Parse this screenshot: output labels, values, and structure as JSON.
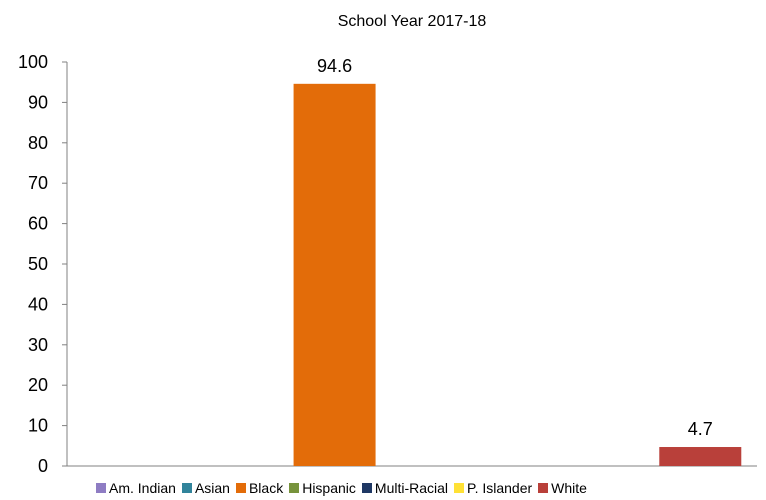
{
  "chart_data": {
    "type": "bar",
    "title": "School Year 2017-18",
    "xlabel": "",
    "ylabel": "",
    "ylim": [
      0,
      100
    ],
    "yticks": [
      0,
      10,
      20,
      30,
      40,
      50,
      60,
      70,
      80,
      90,
      100
    ],
    "grid": false,
    "legend_position": "bottom",
    "series": [
      {
        "name": "Am. Indian",
        "value": null,
        "color": "#8e7cc3"
      },
      {
        "name": "Asian",
        "value": null,
        "color": "#31849b"
      },
      {
        "name": "Black",
        "value": 94.6,
        "color": "#e36c09"
      },
      {
        "name": "Hispanic",
        "value": null,
        "color": "#77933c"
      },
      {
        "name": "Multi-Racial",
        "value": null,
        "color": "#1f3864"
      },
      {
        "name": "P. Islander",
        "value": null,
        "color": "#ffe135"
      },
      {
        "name": "White",
        "value": 4.7,
        "color": "#b9403a"
      }
    ]
  }
}
